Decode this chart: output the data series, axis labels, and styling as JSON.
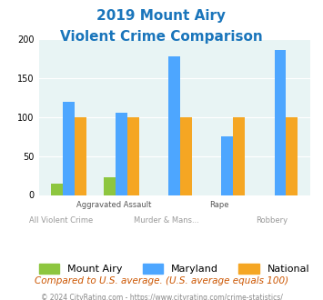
{
  "title_line1": "2019 Mount Airy",
  "title_line2": "Violent Crime Comparison",
  "categories": [
    "All Violent Crime",
    "Aggravated Assault",
    "Murder & Mans...",
    "Rape",
    "Robbery"
  ],
  "category_labels_line1": [
    "All Violent Crime",
    "Aggravated Assault",
    "Murder & Mans...",
    "Rape",
    "Robbery"
  ],
  "category_labels_line2": [
    "",
    "",
    "",
    "",
    ""
  ],
  "mount_airy": [
    15,
    23,
    0,
    0,
    0
  ],
  "maryland": [
    120,
    105,
    178,
    75,
    186
  ],
  "national": [
    100,
    100,
    100,
    100,
    100
  ],
  "color_mount_airy": "#8dc63f",
  "color_maryland": "#4da6ff",
  "color_national": "#f5a623",
  "ylim": [
    0,
    200
  ],
  "yticks": [
    0,
    50,
    100,
    150,
    200
  ],
  "bg_color": "#e8f4f4",
  "title_color": "#1a75bb",
  "subtitle_note": "Compared to U.S. average. (U.S. average equals 100)",
  "footnote": "© 2024 CityRating.com - https://www.cityrating.com/crime-statistics/",
  "subtitle_color": "#cc5500",
  "footnote_color": "#888888"
}
